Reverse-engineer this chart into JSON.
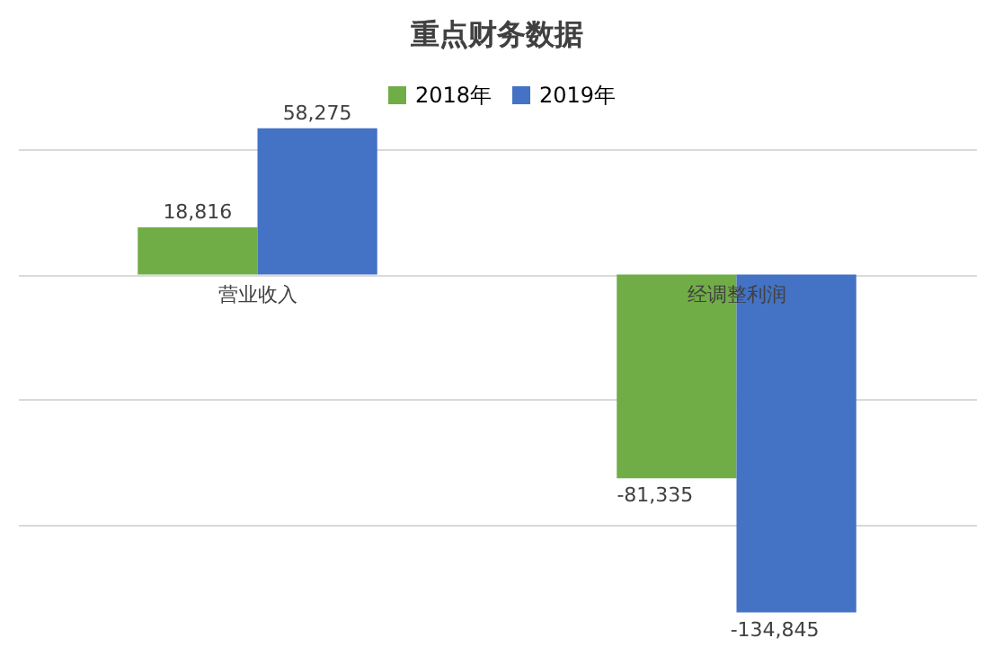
{
  "chart_data": {
    "type": "bar",
    "title": "重点财务数据",
    "categories": [
      "营业收入",
      "经调整利润"
    ],
    "series": [
      {
        "name": "2018年",
        "color": "#70ad47",
        "values": [
          18816,
          -81335
        ],
        "value_labels": [
          "18,816",
          "-81,335"
        ]
      },
      {
        "name": "2019年",
        "color": "#4472c4",
        "values": [
          58275,
          -134845
        ],
        "value_labels": [
          "58,275",
          "-134,845"
        ]
      }
    ],
    "grid": "y",
    "legend": "top",
    "tick_labels": false
  }
}
